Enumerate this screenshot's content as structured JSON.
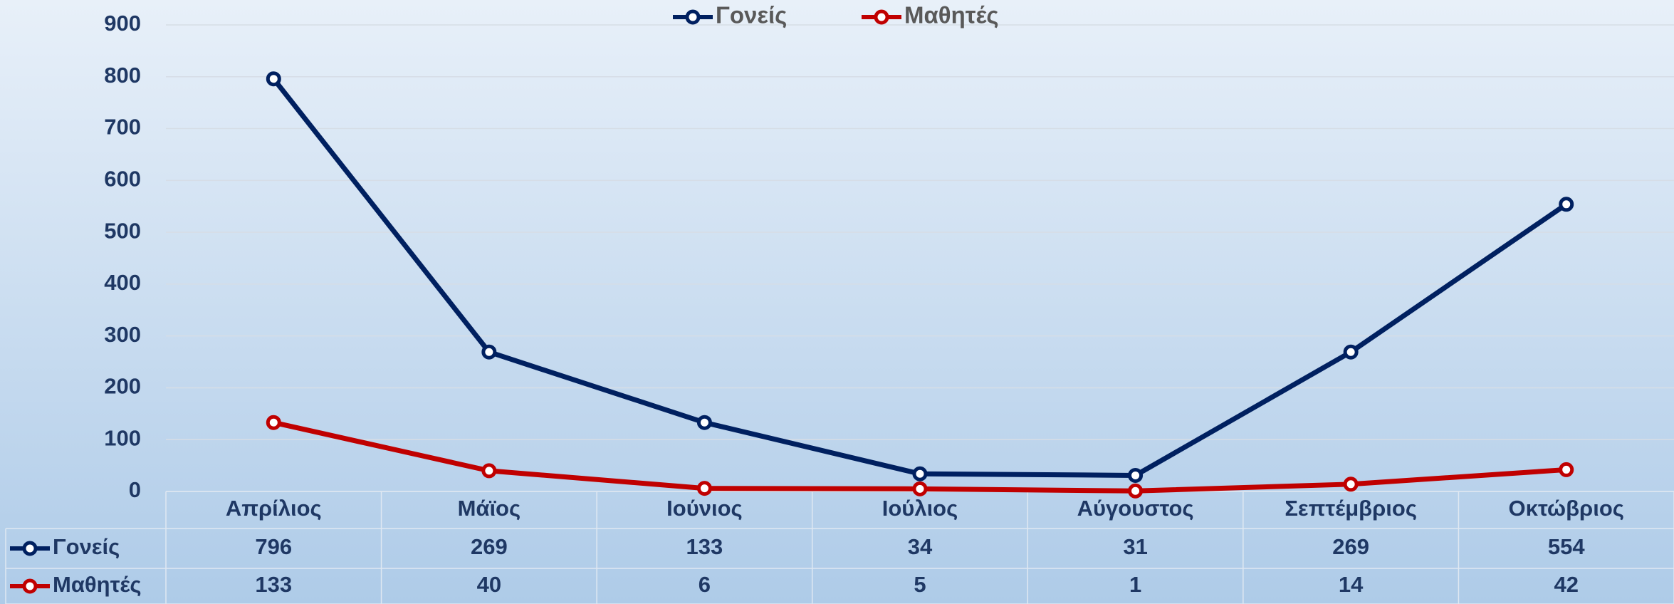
{
  "chart_data": {
    "type": "line",
    "categories": [
      "Απρίλιος",
      "Μάϊος",
      "Ιούνιος",
      "Ιούλιος",
      "Αύγουστος",
      "Σεπτέμβριος",
      "Οκτώβριος"
    ],
    "series": [
      {
        "name": "Γονείς",
        "color": "#002060",
        "values": [
          796,
          269,
          133,
          34,
          31,
          269,
          554
        ]
      },
      {
        "name": "Μαθητές",
        "color": "#c00000",
        "values": [
          133,
          40,
          6,
          5,
          1,
          14,
          42
        ]
      }
    ],
    "ylim": [
      0,
      900
    ],
    "yticks": [
      0,
      100,
      200,
      300,
      400,
      500,
      600,
      700,
      800,
      900
    ],
    "grid": true,
    "legend": "top",
    "data_table": true
  }
}
